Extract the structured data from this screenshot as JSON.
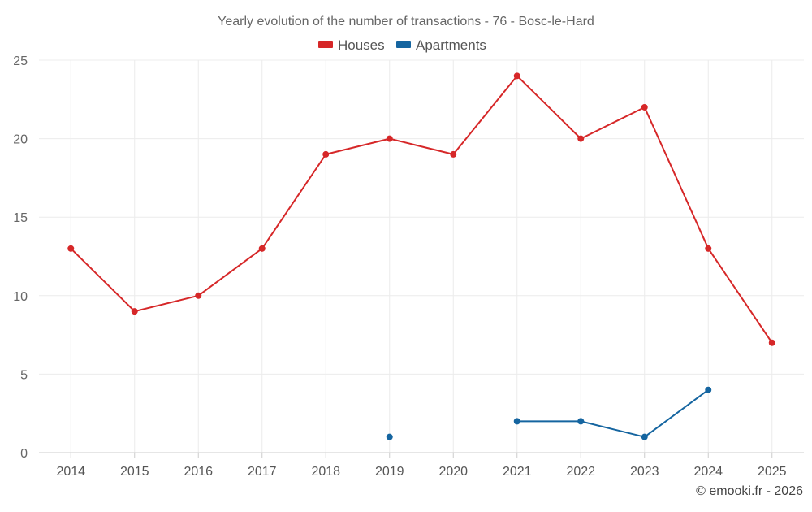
{
  "chart_data": {
    "type": "line",
    "title": "Yearly evolution of the number of transactions - 76 - Bosc-le-Hard",
    "xlabel": "",
    "ylabel": "",
    "categories": [
      "2014",
      "2015",
      "2016",
      "2017",
      "2018",
      "2019",
      "2020",
      "2021",
      "2022",
      "2023",
      "2024",
      "2025"
    ],
    "ylim": [
      0,
      25
    ],
    "yticks": [
      0,
      5,
      10,
      15,
      20,
      25
    ],
    "grid": true,
    "legend_position": "top-center",
    "series": [
      {
        "name": "Houses",
        "color": "#d62728",
        "values": [
          13,
          9,
          10,
          13,
          19,
          20,
          19,
          24,
          20,
          22,
          13,
          7
        ]
      },
      {
        "name": "Apartments",
        "color": "#1565a0",
        "values": [
          null,
          null,
          null,
          null,
          null,
          1,
          null,
          2,
          2,
          1,
          4,
          null
        ]
      }
    ],
    "credit": "© emooki.fr - 2026"
  }
}
